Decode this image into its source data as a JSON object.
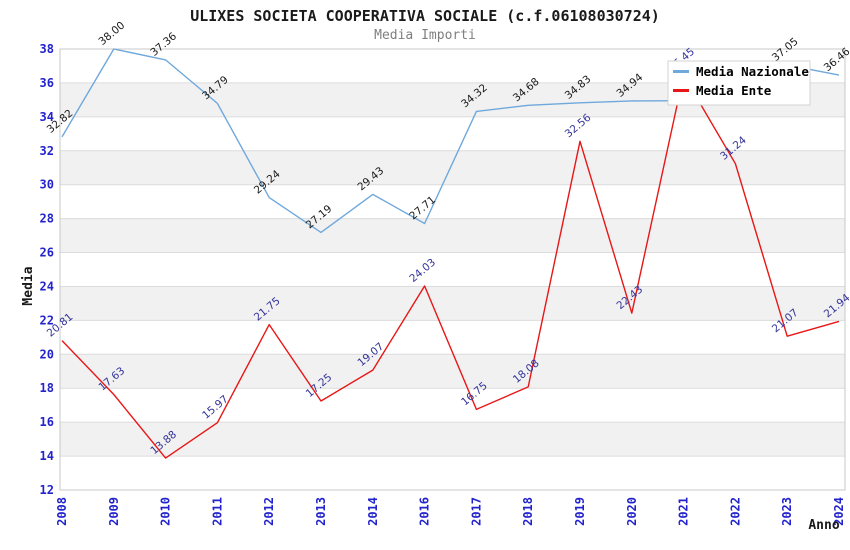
{
  "chart_data": {
    "type": "line",
    "title": "ULIXES SOCIETA COOPERATIVA SOCIALE (c.f.06108030724)",
    "subtitle": "Media Importi",
    "ylabel": "Media",
    "xlabel": "Anno",
    "ylim": [
      12,
      38
    ],
    "ytick_step": 2,
    "grid": "horizontal",
    "alternating_bands": true,
    "legend_position": "top-right",
    "categories": [
      "2008",
      "2009",
      "2010",
      "2011",
      "2012",
      "2013",
      "2014",
      "2016",
      "2017",
      "2018",
      "2019",
      "2020",
      "2021",
      "2022",
      "2023",
      "2024"
    ],
    "series": [
      {
        "name": "Media Nazionale",
        "color": "#6fa8dc",
        "label_color": "#1a1a1a",
        "values": [
          32.82,
          38.0,
          37.36,
          34.79,
          29.24,
          27.19,
          29.43,
          27.71,
          34.32,
          34.68,
          34.83,
          34.94,
          34.95,
          34.96,
          37.05,
          36.46
        ],
        "labels": [
          "32.82",
          "38.00",
          "37.36",
          "34.79",
          "29.24",
          "27.19",
          "29.43",
          "27.71",
          "34.32",
          "34.68",
          "34.83",
          "34.94",
          null,
          null,
          "37.05",
          "36.46"
        ]
      },
      {
        "name": "Media Ente",
        "color": "#e81717",
        "label_color": "#333399",
        "values": [
          20.81,
          17.63,
          13.88,
          15.97,
          21.75,
          17.25,
          19.07,
          24.03,
          16.75,
          18.08,
          32.56,
          22.43,
          36.45,
          31.24,
          21.07,
          21.94
        ],
        "labels": [
          "20.81",
          "17.63",
          "13.88",
          "15.97",
          "21.75",
          "17.25",
          "19.07",
          "24.03",
          "16.75",
          "18.08",
          "32.56",
          "22.43",
          "36.45",
          "31.24",
          "21.07",
          "21.94"
        ]
      }
    ],
    "colors": {
      "band_gray": "#f1f1f1",
      "tick_label_blue": "#2323cd",
      "subtitle_gray": "#7f7f7f"
    }
  }
}
